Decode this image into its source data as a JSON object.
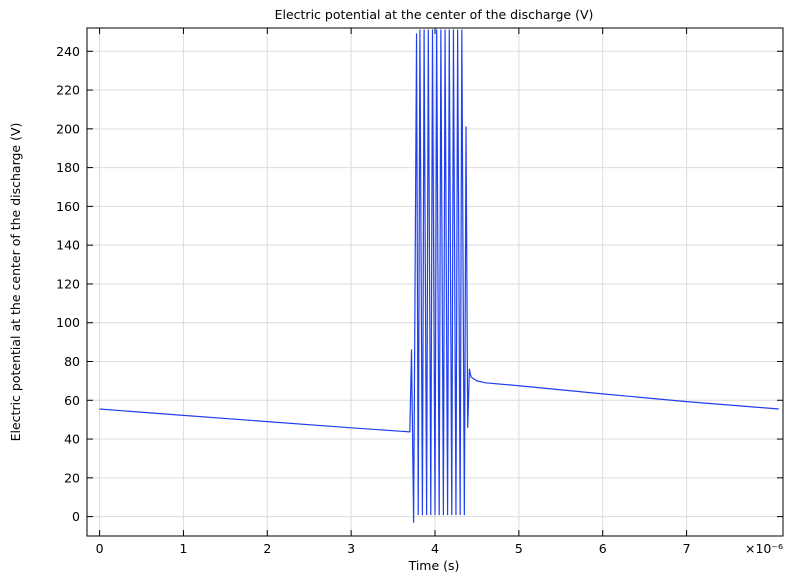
{
  "chart_data": {
    "type": "line",
    "title": "Electric potential at the center of the discharge (V)",
    "xlabel": "Time (s)",
    "ylabel": "Electric potential at the center of the discharge (V)",
    "x_multiplier_label": "×10⁻⁶",
    "xlim": [
      -0.15,
      8.15
    ],
    "ylim": [
      -10,
      252
    ],
    "x_ticks": [
      0,
      1,
      2,
      3,
      4,
      5,
      6,
      7
    ],
    "y_ticks": [
      0,
      20,
      40,
      60,
      80,
      100,
      120,
      140,
      160,
      180,
      200,
      220,
      240
    ],
    "grid": true,
    "legend": "none",
    "line_color": "#1f3ff0",
    "series": [
      {
        "x": [
          0,
          1,
          2,
          3,
          3.6,
          3.7,
          3.72,
          3.745,
          3.78,
          3.8,
          3.82,
          3.85,
          3.87,
          3.9,
          3.92,
          3.95,
          3.97,
          4.0,
          4.02,
          4.05,
          4.07,
          4.1,
          4.12,
          4.15,
          4.17,
          4.2,
          4.22,
          4.25,
          4.27,
          4.3,
          4.32,
          4.35,
          4.37,
          4.39,
          4.41,
          4.43,
          4.5,
          4.6,
          5,
          6,
          7,
          8.1
        ],
        "y": [
          55.5,
          52.2,
          49.0,
          45.8,
          44.0,
          43.7,
          86.0,
          -3,
          249,
          1,
          251,
          1,
          251,
          1,
          251,
          1,
          251,
          1,
          251,
          1,
          251,
          1,
          251,
          1,
          251,
          1,
          251,
          1,
          251,
          1,
          251,
          1,
          201,
          46,
          76,
          72,
          70,
          69,
          67.5,
          63.3,
          59.3,
          55.5
        ]
      }
    ]
  }
}
